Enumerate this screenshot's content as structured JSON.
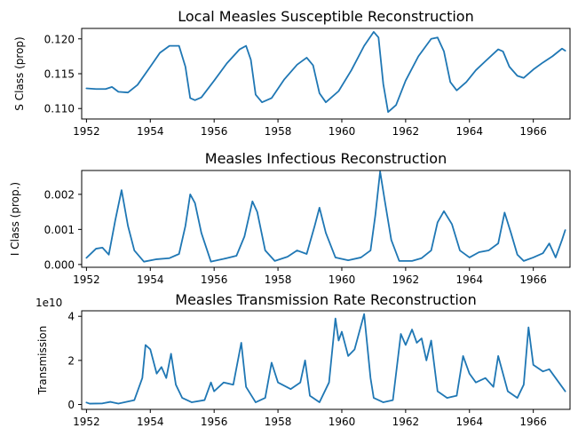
{
  "chart_data": [
    {
      "type": "line",
      "title": "Local Measles Susceptible Reconstruction",
      "ylabel": "S Class (prop)",
      "xlabel": "",
      "xlim": [
        1951.85,
        1967.15
      ],
      "ylim": [
        0.1085,
        0.1215
      ],
      "x_ticks": [
        1952,
        1954,
        1956,
        1958,
        1960,
        1962,
        1964,
        1966
      ],
      "x_tick_labels": [
        "1952",
        "1954",
        "1956",
        "1958",
        "1960",
        "1962",
        "1964",
        "1966"
      ],
      "y_ticks": [
        0.11,
        0.115,
        0.12
      ],
      "y_tick_labels": [
        "0.110",
        "0.115",
        "0.120"
      ],
      "offset_text": "",
      "color": "#1f77b4",
      "series": [
        {
          "x": [
            1952.0,
            1952.3,
            1952.6,
            1952.8,
            1953.0,
            1953.3,
            1953.6,
            1954.0,
            1954.3,
            1954.6,
            1954.9,
            1955.1,
            1955.25,
            1955.4,
            1955.6,
            1956.0,
            1956.4,
            1956.8,
            1957.0,
            1957.15,
            1957.3,
            1957.5,
            1957.8,
            1958.2,
            1958.6,
            1958.9,
            1959.1,
            1959.3,
            1959.5,
            1959.9,
            1960.3,
            1960.7,
            1961.0,
            1961.15,
            1961.3,
            1961.45,
            1961.7,
            1962.0,
            1962.4,
            1962.8,
            1963.0,
            1963.2,
            1963.4,
            1963.6,
            1963.9,
            1964.2,
            1964.5,
            1964.9,
            1965.05,
            1965.25,
            1965.5,
            1965.7,
            1966.0,
            1966.3,
            1966.6,
            1966.9,
            1967.0
          ],
          "y": [
            0.1129,
            0.1128,
            0.1128,
            0.1131,
            0.1124,
            0.1123,
            0.1134,
            0.116,
            0.118,
            0.119,
            0.119,
            0.116,
            0.1115,
            0.1112,
            0.1116,
            0.114,
            0.1165,
            0.1185,
            0.119,
            0.117,
            0.112,
            0.1109,
            0.1115,
            0.1142,
            0.1163,
            0.1173,
            0.1162,
            0.1122,
            0.1109,
            0.1125,
            0.1155,
            0.119,
            0.121,
            0.1202,
            0.1135,
            0.1095,
            0.1105,
            0.114,
            0.1175,
            0.12,
            0.1202,
            0.1182,
            0.1138,
            0.1126,
            0.1138,
            0.1155,
            0.1168,
            0.1185,
            0.1182,
            0.116,
            0.1147,
            0.1144,
            0.1156,
            0.1166,
            0.1175,
            0.1186,
            0.1183
          ]
        }
      ]
    },
    {
      "type": "line",
      "title": "Measles Infectious Reconstruction",
      "ylabel": "I Class (prop.)",
      "xlabel": "",
      "xlim": [
        1951.85,
        1967.15
      ],
      "ylim": [
        -8e-05,
        0.00268
      ],
      "x_ticks": [
        1952,
        1954,
        1956,
        1958,
        1960,
        1962,
        1964,
        1966
      ],
      "x_tick_labels": [
        "1952",
        "1954",
        "1956",
        "1958",
        "1960",
        "1962",
        "1964",
        "1966"
      ],
      "y_ticks": [
        0.0,
        0.001,
        0.002
      ],
      "y_tick_labels": [
        "0.000",
        "0.001",
        "0.002"
      ],
      "offset_text": "",
      "color": "#1f77b4",
      "series": [
        {
          "x": [
            1952.0,
            1952.3,
            1952.5,
            1952.7,
            1952.9,
            1953.1,
            1953.3,
            1953.5,
            1953.8,
            1954.2,
            1954.6,
            1954.9,
            1955.1,
            1955.25,
            1955.4,
            1955.6,
            1955.9,
            1956.3,
            1956.7,
            1956.95,
            1957.2,
            1957.35,
            1957.6,
            1957.9,
            1958.3,
            1958.6,
            1958.9,
            1959.15,
            1959.3,
            1959.5,
            1959.8,
            1960.2,
            1960.6,
            1960.9,
            1961.05,
            1961.2,
            1961.35,
            1961.55,
            1961.8,
            1962.2,
            1962.5,
            1962.8,
            1963.0,
            1963.2,
            1963.45,
            1963.7,
            1964.0,
            1964.3,
            1964.6,
            1964.9,
            1965.1,
            1965.3,
            1965.5,
            1965.7,
            1966.0,
            1966.3,
            1966.5,
            1966.7,
            1966.9,
            1967.0
          ],
          "y": [
            0.00019,
            0.00045,
            0.00048,
            0.00028,
            0.00125,
            0.00212,
            0.0011,
            0.0004,
            8e-05,
            0.00015,
            0.00018,
            0.0003,
            0.0011,
            0.002,
            0.00175,
            0.0009,
            8e-05,
            0.00016,
            0.00025,
            0.0008,
            0.0018,
            0.0015,
            0.0004,
            0.0001,
            0.00022,
            0.0004,
            0.0003,
            0.0011,
            0.00162,
            0.0009,
            0.0002,
            0.00012,
            0.0002,
            0.0004,
            0.0014,
            0.00265,
            0.0018,
            0.0007,
            0.0001,
            0.0001,
            0.00018,
            0.0004,
            0.0012,
            0.00152,
            0.00115,
            0.0004,
            0.0002,
            0.00035,
            0.0004,
            0.0006,
            0.00148,
            0.0009,
            0.00028,
            0.0001,
            0.0002,
            0.00032,
            0.0006,
            0.0002,
            0.0007,
            0.00098
          ]
        }
      ]
    },
    {
      "type": "line",
      "title": "Measles Transmission Rate Reconstruction",
      "ylabel": "Transmission",
      "xlabel": "",
      "xlim": [
        1951.85,
        1967.15
      ],
      "ylim": [
        -2200000000,
        42500000000
      ],
      "x_ticks": [
        1952,
        1954,
        1956,
        1958,
        1960,
        1962,
        1964,
        1966
      ],
      "x_tick_labels": [
        "1952",
        "1954",
        "1956",
        "1958",
        "1960",
        "1962",
        "1964",
        "1966"
      ],
      "y_ticks": [
        0,
        20000000000,
        40000000000
      ],
      "y_tick_labels": [
        "0",
        "2",
        "4"
      ],
      "offset_text": "1e10",
      "color": "#1f77b4",
      "series": [
        {
          "x": [
            1952.0,
            1952.1,
            1952.5,
            1952.75,
            1953.0,
            1953.5,
            1953.75,
            1953.85,
            1954.0,
            1954.2,
            1954.35,
            1954.5,
            1954.65,
            1954.8,
            1955.0,
            1955.3,
            1955.7,
            1955.9,
            1956.0,
            1956.3,
            1956.6,
            1956.85,
            1957.0,
            1957.3,
            1957.6,
            1957.8,
            1958.0,
            1958.4,
            1958.7,
            1958.85,
            1959.0,
            1959.3,
            1959.6,
            1959.8,
            1959.9,
            1960.0,
            1960.2,
            1960.4,
            1960.7,
            1960.9,
            1961.0,
            1961.3,
            1961.6,
            1961.85,
            1962.0,
            1962.2,
            1962.35,
            1962.5,
            1962.65,
            1962.8,
            1963.0,
            1963.3,
            1963.6,
            1963.8,
            1964.0,
            1964.2,
            1964.5,
            1964.75,
            1964.9,
            1965.2,
            1965.5,
            1965.7,
            1965.85,
            1966.0,
            1966.3,
            1966.5,
            1966.8,
            1967.0
          ],
          "y": [
            900000000,
            400000000,
            500000000,
            1200000000,
            400000000,
            2000000000,
            12000000000,
            27000000000,
            25000000000,
            14000000000,
            17000000000,
            12000000000,
            23000000000,
            9000000000,
            3000000000,
            1000000000,
            2000000000,
            10000000000,
            6000000000,
            10000000000,
            9000000000,
            28000000000,
            8000000000,
            1000000000,
            3000000000,
            19000000000,
            10000000000,
            7000000000,
            10000000000,
            20000000000,
            4000000000,
            1000000000,
            10000000000,
            39000000000,
            29000000000,
            33000000000,
            22000000000,
            25000000000,
            41000000000,
            12000000000,
            3000000000,
            1000000000,
            2000000000,
            32000000000,
            27000000000,
            34000000000,
            28000000000,
            30000000000,
            20000000000,
            29000000000,
            6000000000,
            3000000000,
            4000000000,
            22000000000,
            14000000000,
            10000000000,
            12000000000,
            8000000000,
            22000000000,
            6000000000,
            3000000000,
            9000000000,
            35000000000,
            18000000000,
            15000000000,
            16000000000,
            10000000000,
            6000000000
          ]
        }
      ]
    }
  ]
}
